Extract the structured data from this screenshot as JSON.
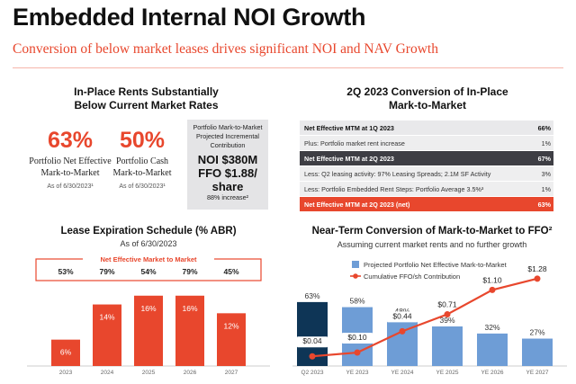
{
  "header": {
    "title": "Embedded Internal NOI Growth",
    "subtitle": "Conversion of below market leases drives significant NOI and NAV Growth"
  },
  "in_place": {
    "heading_line1": "In-Place Rents Substantially",
    "heading_line2": "Below Current Market Rates",
    "net_effective": {
      "value": "63%",
      "label_line1": "Portfolio Net Effective",
      "label_line2": "Mark-to-Market",
      "as_of": "As of 6/30/2023¹"
    },
    "cash": {
      "value": "50%",
      "label_line1": "Portfolio Cash",
      "label_line2": "Mark-to-Market",
      "as_of": "As of 6/30/2023¹"
    },
    "box": {
      "line1": "Portfolio Mark-to-Market",
      "line2": "Projected Incremental",
      "line3": "Contribution",
      "noi": "NOI $380M",
      "ffo": "FFO $1.88/",
      "share": "share",
      "increase": "88% increase²"
    }
  },
  "conversion_table": {
    "heading_line1": "2Q 2023 Conversion of In-Place",
    "heading_line2": "Mark-to-Market",
    "rows": [
      {
        "label": "Net Effective MTM at 1Q 2023",
        "value": "66%",
        "style": "bold"
      },
      {
        "label": "Plus: Portfolio market rent increase",
        "value": "1%",
        "style": "grey"
      },
      {
        "label": "Net Effective MTM at 2Q 2023",
        "value": "67%",
        "style": "dark"
      },
      {
        "label": "Less: Q2 leasing activity: 97% Leasing Spreads; 2.1M SF Activity",
        "value": "3%",
        "style": "grey"
      },
      {
        "label": "Less: Portfolio Embedded Rent Steps: Portfolio Average 3.5%³",
        "value": "1%",
        "style": "grey"
      },
      {
        "label": "Net Effective MTM at 2Q 2023 (net)",
        "value": "63%",
        "style": "red"
      }
    ]
  },
  "chart_data": [
    {
      "type": "bar",
      "title": "Lease Expiration Schedule (% ABR)",
      "subtitle": "As of 6/30/2023",
      "banner": "Net Effective Market to Market",
      "categories": [
        "2023",
        "2024",
        "2025",
        "2026",
        "2027"
      ],
      "values": [
        6,
        14,
        16,
        16,
        12
      ],
      "value_labels": [
        "6%",
        "14%",
        "16%",
        "16%",
        "12%"
      ],
      "mtm_labels": [
        "53%",
        "79%",
        "54%",
        "79%",
        "45%"
      ],
      "ylim": [
        0,
        18
      ],
      "color": "#e8472d"
    },
    {
      "type": "bar+line",
      "title": "Near-Term Conversion of Mark-to-Market to FFO²",
      "subtitle": "Assuming current market rents and no further growth",
      "categories": [
        "Q2 2023",
        "YE 2023",
        "YE 2024",
        "YE 2025",
        "YE 2026",
        "YE 2027"
      ],
      "series": [
        {
          "name": "Projected Portfolio Net Effective Mark-to-Market",
          "kind": "bar",
          "values": [
            63,
            58,
            48,
            39,
            32,
            27
          ],
          "labels": [
            "63%",
            "58%",
            "48%",
            "39%",
            "32%",
            "27%"
          ],
          "ylim": [
            0,
            70
          ]
        },
        {
          "name": "Cumulative FFO/sh Contribution",
          "kind": "line",
          "values": [
            0.04,
            0.1,
            0.44,
            0.71,
            1.1,
            1.28
          ],
          "labels": [
            "$0.04",
            "$0.10",
            "$0.44",
            "$0.71",
            "$1.10",
            "$1.28"
          ],
          "ylim": [
            0,
            1.45
          ]
        }
      ],
      "colors": {
        "bar": "#6e9dd6",
        "bar_first": "#0e3556",
        "line": "#e8472d"
      }
    }
  ]
}
